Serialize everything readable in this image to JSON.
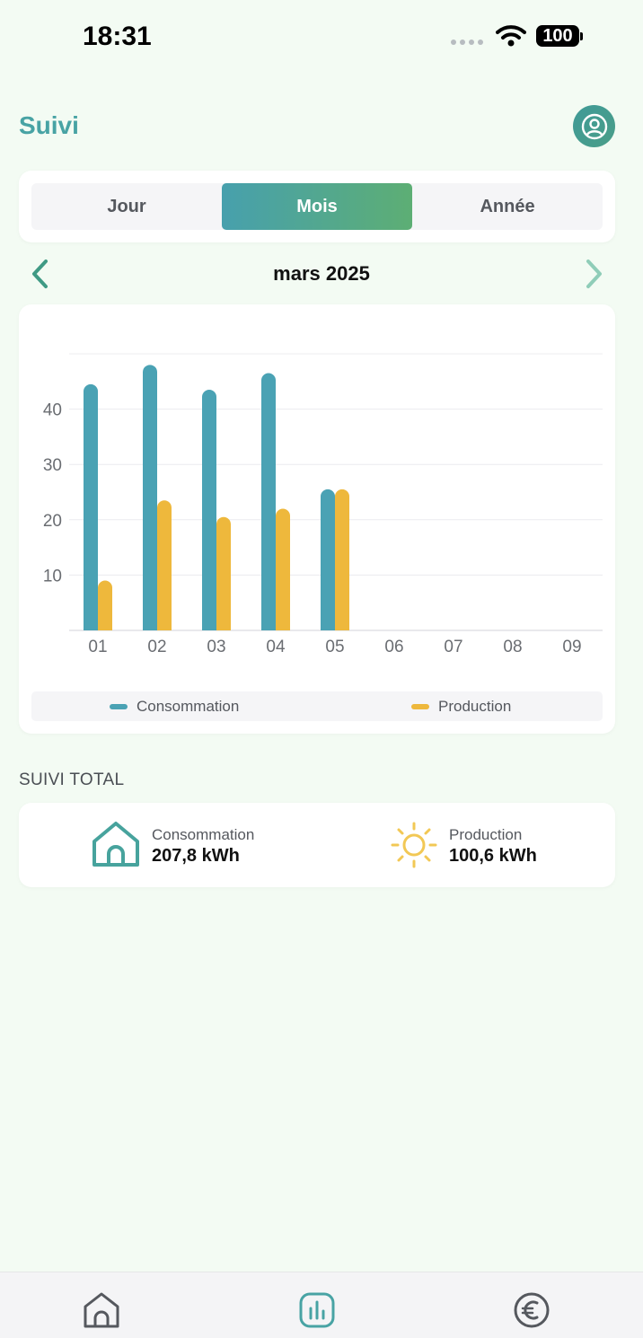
{
  "status_bar": {
    "time": "18:31",
    "battery": "100"
  },
  "header": {
    "title": "Suivi"
  },
  "period_tabs": [
    {
      "label": "Jour",
      "active": false
    },
    {
      "label": "Mois",
      "active": true
    },
    {
      "label": "Année",
      "active": false
    }
  ],
  "period_nav": {
    "label": "mars 2025"
  },
  "chart_data": {
    "type": "bar",
    "categories": [
      "01",
      "02",
      "03",
      "04",
      "05",
      "06",
      "07",
      "08",
      "09"
    ],
    "series": [
      {
        "name": "Consommation",
        "color": "#4aa2b4",
        "values": [
          44.5,
          48,
          43.5,
          46.5,
          25.5,
          null,
          null,
          null,
          null
        ]
      },
      {
        "name": "Production",
        "color": "#eeb83c",
        "values": [
          9,
          23.5,
          20.5,
          22,
          25.5,
          null,
          null,
          null,
          null
        ]
      }
    ],
    "yticks": [
      10,
      20,
      30,
      40
    ],
    "ylim": [
      0,
      50
    ],
    "grid": true,
    "legend": "bottom"
  },
  "totals": {
    "title": "SUIVI TOTAL",
    "consumption": {
      "label": "Consommation",
      "value": "207,8 kWh"
    },
    "production": {
      "label": "Production",
      "value": "100,6 kWh"
    }
  },
  "icons": {
    "profile": "user-circle-icon",
    "prev": "chevron-left-icon",
    "next": "chevron-right-icon",
    "consumption": "house-icon",
    "production": "sun-icon",
    "nav": [
      "home-icon",
      "bar-chart-icon",
      "euro-icon"
    ]
  },
  "colors": {
    "accent": "#48a3a4",
    "consumption": "#4aa2b4",
    "production": "#eeb83c"
  }
}
